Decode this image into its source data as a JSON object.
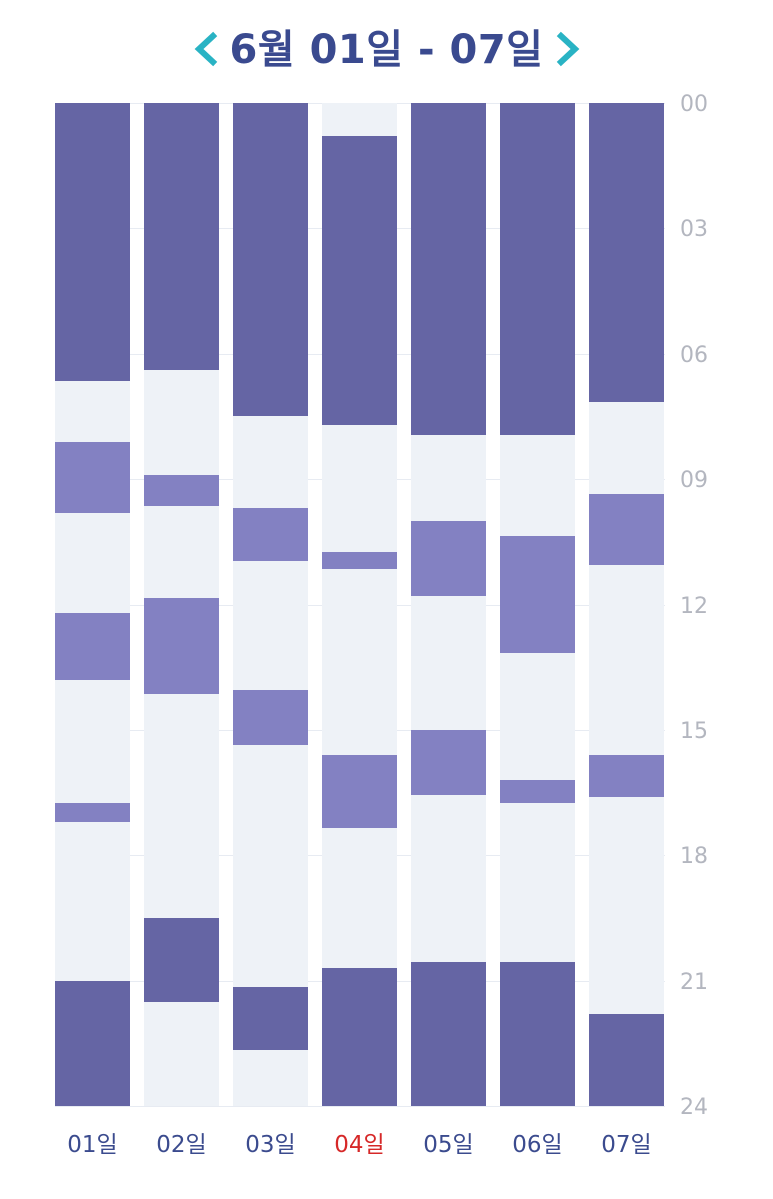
{
  "header": {
    "title": "6월 01일 - 07일",
    "prev_icon": "chevron-left-icon",
    "next_icon": "chevron-right-icon",
    "accent_color": "#29b3c4",
    "title_color": "#3a4a8f"
  },
  "chart_data": {
    "type": "bar",
    "subtype": "stacked-timeline",
    "y_axis": {
      "ticks": [
        "00",
        "03",
        "06",
        "09",
        "12",
        "15",
        "18",
        "21",
        "24"
      ],
      "range_hours": [
        0,
        24
      ],
      "position": "right"
    },
    "colors": {
      "deep": "#6565a4",
      "light": "#8381c2",
      "empty": "#eef2f7"
    },
    "days": [
      {
        "label": "01일",
        "today": false,
        "segments": [
          {
            "kind": "deep",
            "start": 0,
            "end": 6.65
          },
          {
            "kind": "light",
            "start": 8.1,
            "end": 9.8
          },
          {
            "kind": "light",
            "start": 12.2,
            "end": 13.8
          },
          {
            "kind": "light",
            "start": 16.75,
            "end": 17.2
          },
          {
            "kind": "deep",
            "start": 21.0,
            "end": 24
          }
        ]
      },
      {
        "label": "02일",
        "today": false,
        "segments": [
          {
            "kind": "deep",
            "start": 0,
            "end": 6.4
          },
          {
            "kind": "light",
            "start": 8.9,
            "end": 9.65
          },
          {
            "kind": "light",
            "start": 11.85,
            "end": 14.15
          },
          {
            "kind": "deep",
            "start": 19.5,
            "end": 21.5
          }
        ]
      },
      {
        "label": "03일",
        "today": false,
        "segments": [
          {
            "kind": "deep",
            "start": 0,
            "end": 7.5
          },
          {
            "kind": "light",
            "start": 9.7,
            "end": 10.95
          },
          {
            "kind": "light",
            "start": 14.05,
            "end": 15.35
          },
          {
            "kind": "deep",
            "start": 21.15,
            "end": 22.65
          }
        ]
      },
      {
        "label": "04일",
        "today": true,
        "segments": [
          {
            "kind": "deep",
            "start": 0.8,
            "end": 7.7
          },
          {
            "kind": "light",
            "start": 10.75,
            "end": 11.15
          },
          {
            "kind": "light",
            "start": 15.6,
            "end": 17.35
          },
          {
            "kind": "deep",
            "start": 20.7,
            "end": 24
          }
        ]
      },
      {
        "label": "05일",
        "today": false,
        "segments": [
          {
            "kind": "deep",
            "start": 0,
            "end": 7.95
          },
          {
            "kind": "light",
            "start": 10.0,
            "end": 11.8
          },
          {
            "kind": "light",
            "start": 15.0,
            "end": 16.55
          },
          {
            "kind": "deep",
            "start": 20.55,
            "end": 24
          }
        ]
      },
      {
        "label": "06일",
        "today": false,
        "segments": [
          {
            "kind": "deep",
            "start": 0,
            "end": 7.95
          },
          {
            "kind": "light",
            "start": 10.35,
            "end": 13.15
          },
          {
            "kind": "light",
            "start": 16.2,
            "end": 16.75
          },
          {
            "kind": "deep",
            "start": 20.55,
            "end": 24
          }
        ]
      },
      {
        "label": "07일",
        "today": false,
        "segments": [
          {
            "kind": "deep",
            "start": 0,
            "end": 7.15
          },
          {
            "kind": "light",
            "start": 9.35,
            "end": 11.05
          },
          {
            "kind": "light",
            "start": 15.6,
            "end": 16.6
          },
          {
            "kind": "deep",
            "start": 21.8,
            "end": 24
          }
        ]
      }
    ]
  }
}
